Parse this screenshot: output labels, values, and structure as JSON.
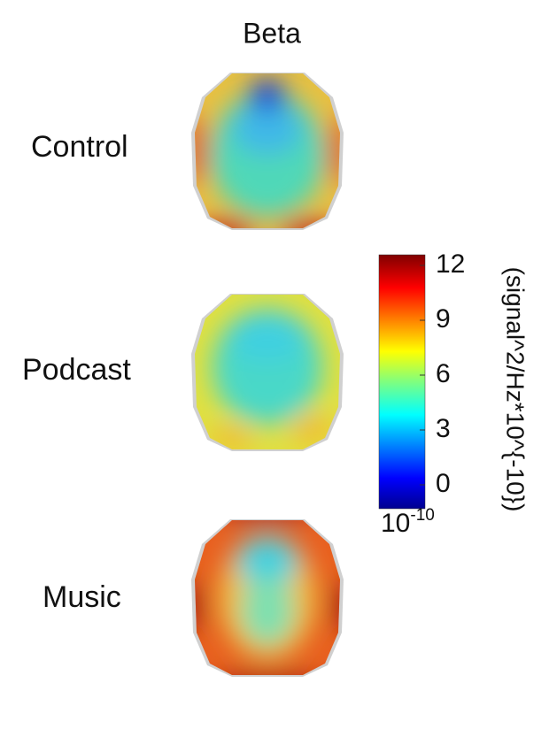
{
  "title": "Beta",
  "conditions": [
    "Control",
    "Podcast",
    "Music"
  ],
  "colorbar": {
    "ticks": [
      0,
      3,
      6,
      9,
      12
    ],
    "label": "(signal^2/Hz*10^{-10})",
    "multiplier": {
      "base": "10",
      "exponent": "-10"
    }
  }
}
